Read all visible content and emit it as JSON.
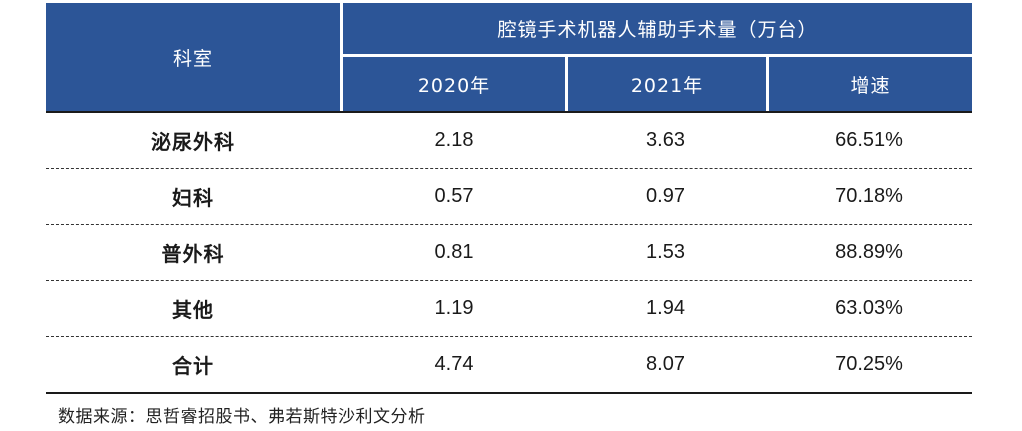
{
  "header": {
    "dept_label": "科室",
    "group_label": "腔镜手术机器人辅助手术量（万台）",
    "col_2020": "2020年",
    "col_2021": "2021年",
    "col_growth": "增速"
  },
  "rows": [
    {
      "dept": "泌尿外科",
      "v2020": "2.18",
      "v2021": "3.63",
      "growth": "66.51%"
    },
    {
      "dept": "妇科",
      "v2020": "0.57",
      "v2021": "0.97",
      "growth": "70.18%"
    },
    {
      "dept": "普外科",
      "v2020": "0.81",
      "v2021": "1.53",
      "growth": "88.89%"
    },
    {
      "dept": "其他",
      "v2020": "1.19",
      "v2021": "1.94",
      "growth": "63.03%"
    },
    {
      "dept": "合计",
      "v2020": "4.74",
      "v2021": "8.07",
      "growth": "70.25%"
    }
  ],
  "source": "数据来源：思哲睿招股书、弗若斯特沙利文分析",
  "colors": {
    "header_bg": "#2c5597",
    "header_text": "#ffffff"
  }
}
